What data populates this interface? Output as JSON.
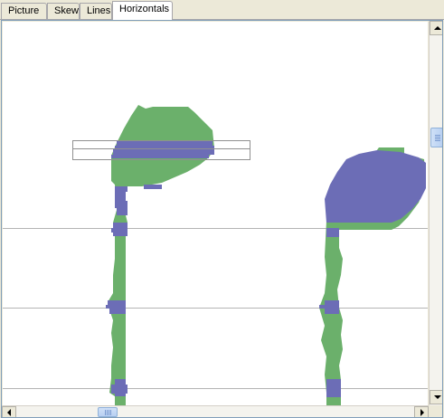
{
  "tabs": [
    {
      "label": "Picture",
      "active": false
    },
    {
      "label": "Skew",
      "active": false
    },
    {
      "label": "Lines",
      "active": false
    },
    {
      "label": "Horizontals",
      "active": true
    }
  ],
  "colors": {
    "glyph_fill": "#6bb06b",
    "horizontal_section": "#6c6db6",
    "staff_line": "#b4b4b4",
    "canvas_background": "#ffffff",
    "window_background": "#ece9d8"
  },
  "icons": {
    "scroll_up": "triangle-up-icon",
    "scroll_down": "triangle-down-icon",
    "scroll_left": "triangle-left-icon",
    "scroll_right": "triangle-right-icon"
  }
}
